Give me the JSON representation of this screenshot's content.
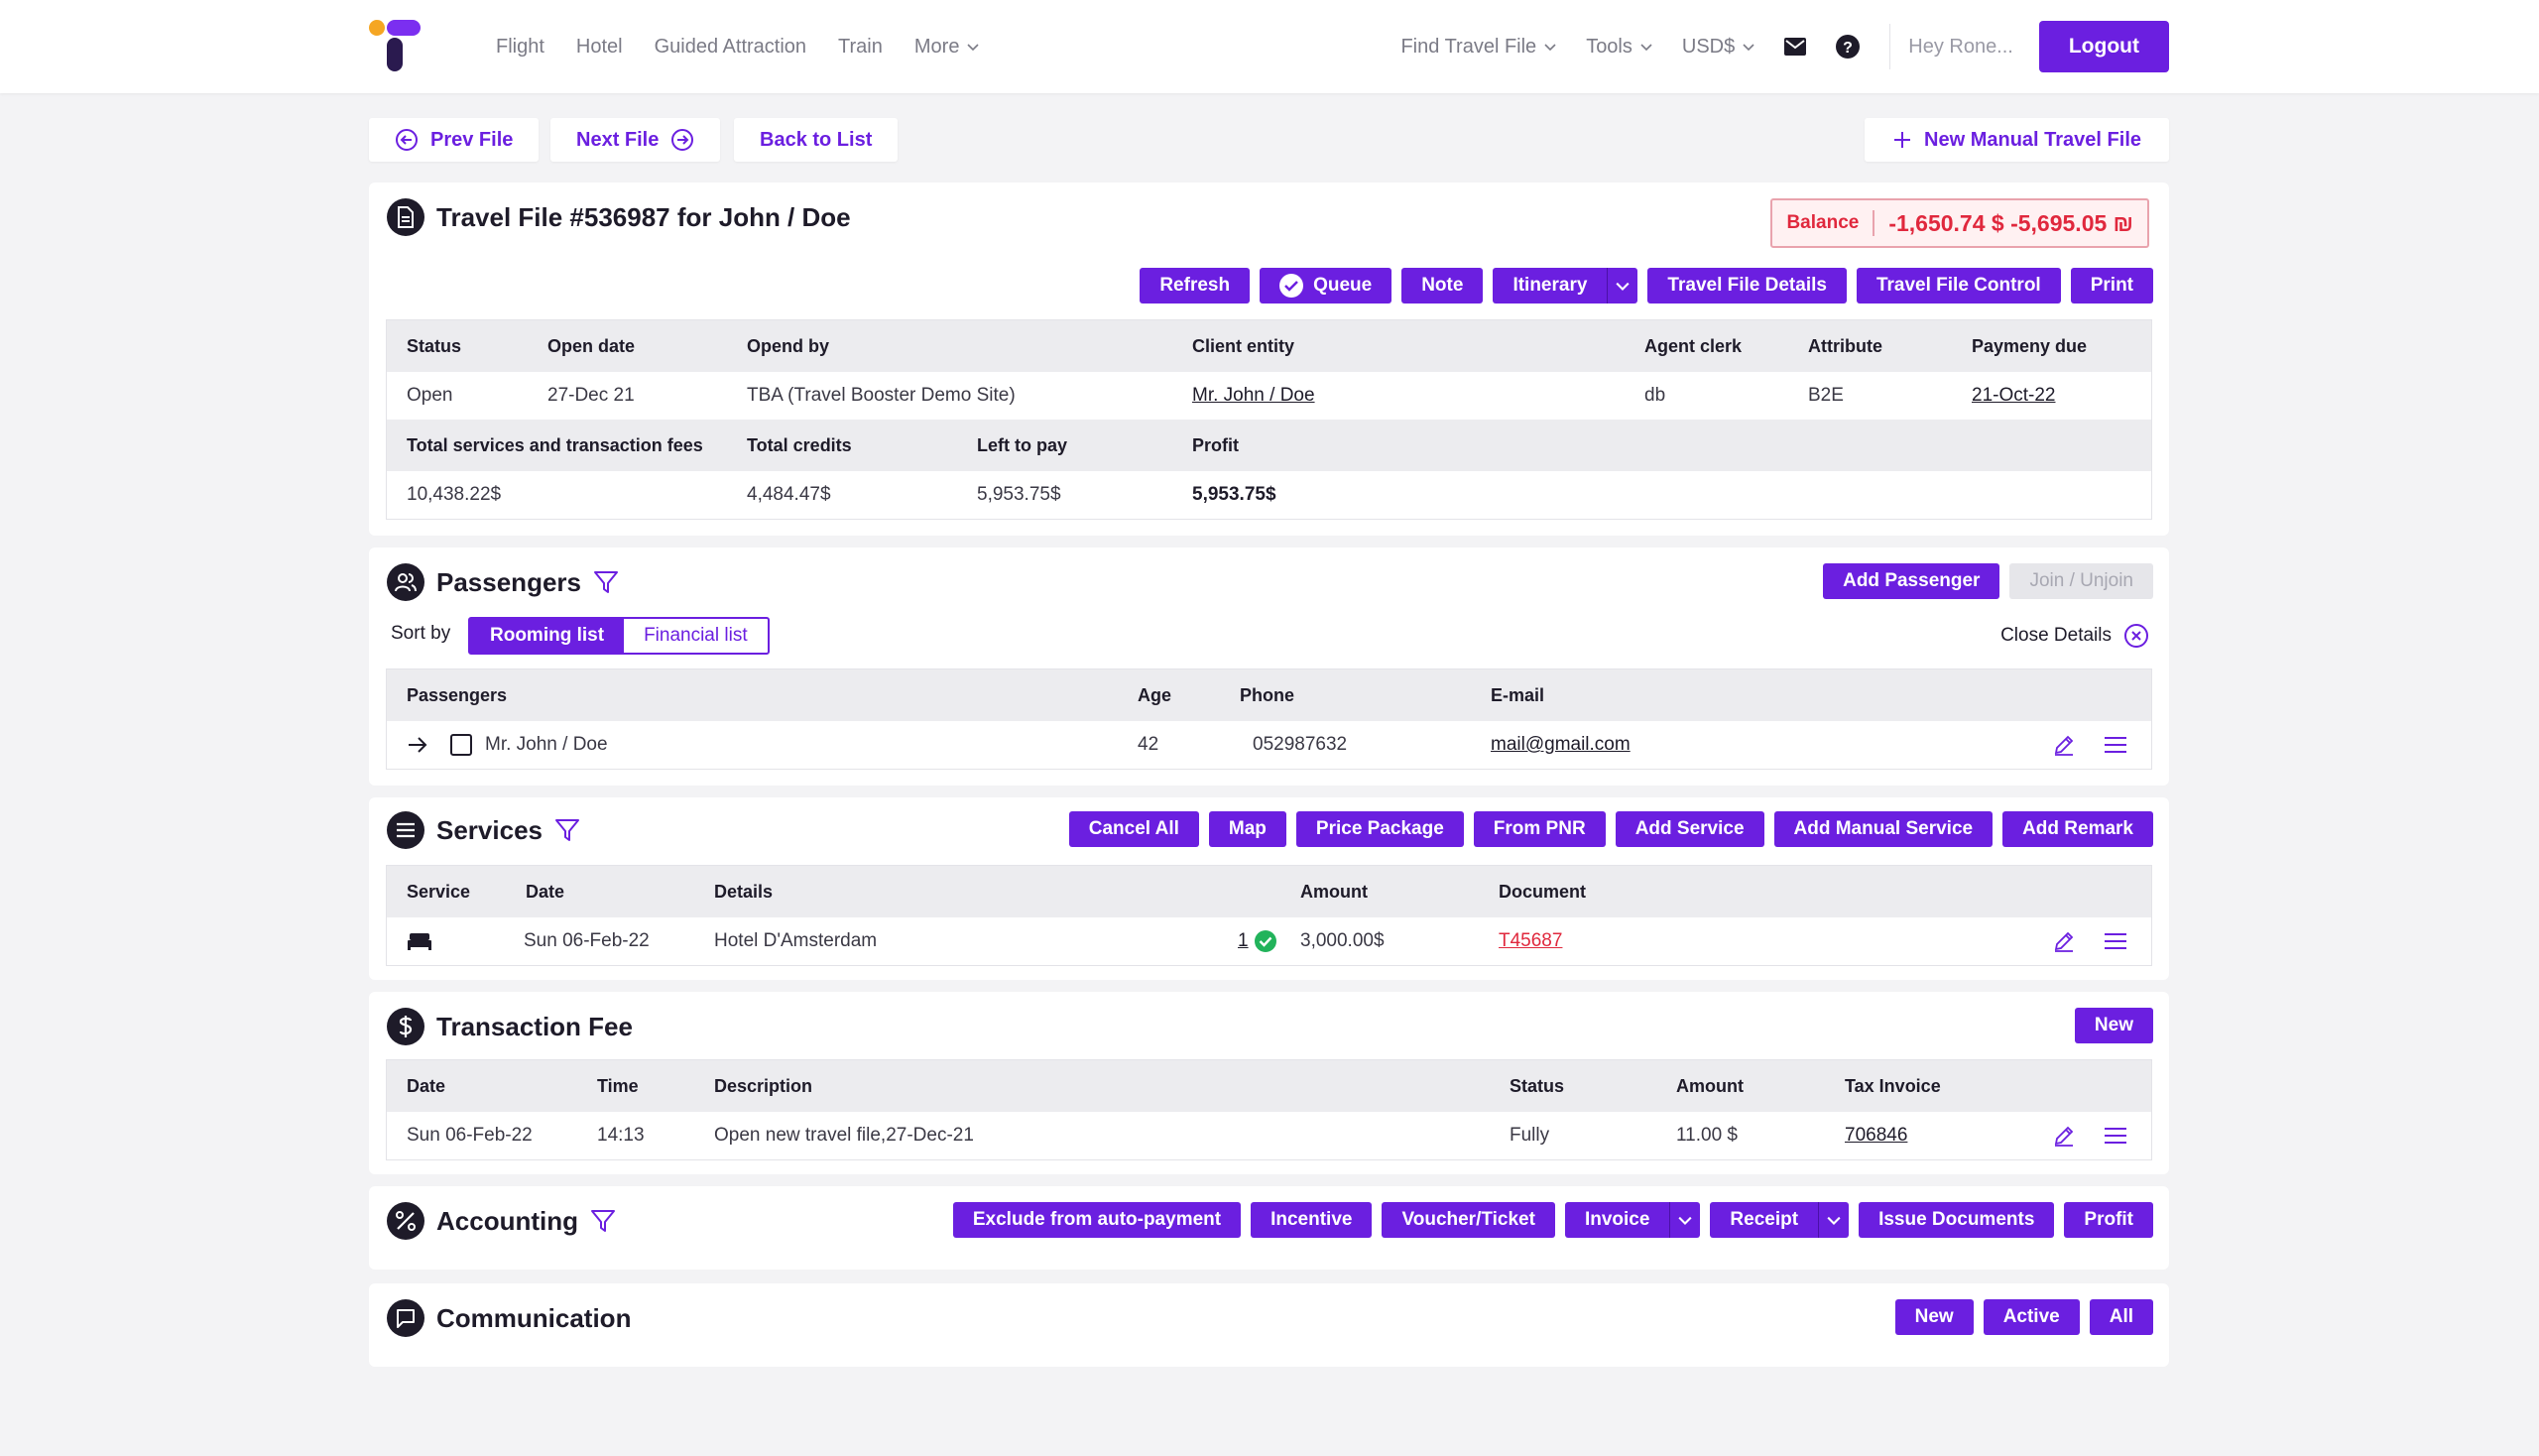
{
  "nav": {
    "left": [
      "Flight",
      "Hotel",
      "Guided Attraction",
      "Train",
      "More"
    ],
    "find_travel_file": "Find Travel File",
    "tools": "Tools",
    "currency": "USD$",
    "greeting": "Hey Rone...",
    "logout": "Logout"
  },
  "filenav": {
    "prev": "Prev File",
    "next": "Next File",
    "back": "Back to List",
    "new_manual": "New Manual Travel File"
  },
  "travel_file": {
    "title": "Travel File #536987 for John / Doe",
    "balance_label": "Balance",
    "balance_value": "-1,650.74 $ -5,695.05 ₪",
    "buttons": [
      "Refresh",
      "Queue",
      "Note",
      "Itinerary",
      "Travel File Details",
      "Travel File Control",
      "Print"
    ],
    "headers1": [
      "Status",
      "Open date",
      "Opend by",
      "Client entity",
      "Agent clerk",
      "Attribute",
      "Paymeny due"
    ],
    "row1": [
      "Open",
      "27-Dec 21",
      "TBA (Travel Booster Demo Site)",
      "Mr. John / Doe",
      "db",
      "B2E",
      "21-Oct-22"
    ],
    "headers2": [
      "Total services and transaction fees",
      "Total credits",
      "Left to pay",
      "Profit"
    ],
    "row2": [
      "10,438.22$",
      "4,484.47$",
      "5,953.75$",
      "5,953.75$"
    ]
  },
  "passengers": {
    "title": "Passengers",
    "add": "Add Passenger",
    "join": "Join / Unjoin",
    "sort_by": "Sort by",
    "sort_options": [
      "Rooming list",
      "Financial list"
    ],
    "close_details": "Close Details",
    "headers": [
      "Passengers",
      "Age",
      "Phone",
      "E-mail"
    ],
    "rows": [
      {
        "name": "Mr. John / Doe",
        "age": "42",
        "phone": "052987632",
        "email": "mail@gmail.com"
      }
    ]
  },
  "services": {
    "title": "Services",
    "buttons": [
      "Cancel All",
      "Map",
      "Price Package",
      "From PNR",
      "Add Service",
      "Add Manual Service",
      "Add Remark"
    ],
    "headers": [
      "Service",
      "Date",
      "Details",
      "Amount",
      "Document"
    ],
    "rows": [
      {
        "icon": "bed-icon",
        "date": "Sun 06-Feb-22",
        "details": "Hotel D'Amsterdam",
        "count": "1",
        "amount": "3,000.00$",
        "document": "T45687"
      }
    ]
  },
  "transaction_fee": {
    "title": "Transaction Fee",
    "new": "New",
    "headers": [
      "Date",
      "Time",
      "Description",
      "Status",
      "Amount",
      "Tax Invoice"
    ],
    "rows": [
      {
        "date": "Sun 06-Feb-22",
        "time": "14:13",
        "description": "Open new travel file,27-Dec-21",
        "status": "Fully",
        "amount": "11.00 $",
        "invoice": "706846"
      }
    ]
  },
  "accounting": {
    "title": "Accounting",
    "buttons": [
      "Exclude from auto-payment",
      "Incentive",
      "Voucher/Ticket",
      "Invoice",
      "Receipt",
      "Issue Documents",
      "Profit"
    ]
  },
  "communication": {
    "title": "Communication",
    "buttons": [
      "New",
      "Active",
      "All"
    ]
  },
  "colors": {
    "accent": "#6b1fe0",
    "danger": "#e0283d",
    "success": "#22b35b",
    "logo_orange": "#f5a623",
    "logo_purple": "#7b2ff0"
  }
}
